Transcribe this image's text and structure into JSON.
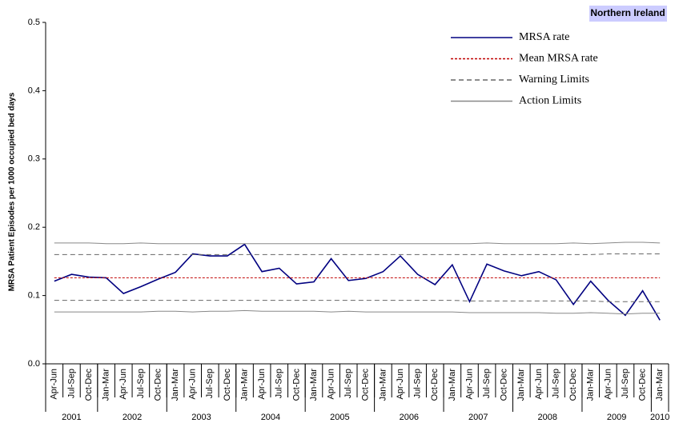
{
  "chart_data": {
    "type": "line",
    "badge": "Northern Ireland",
    "y_label": "MRSA Patient Episodes per 1000 occupied bed days",
    "categories": [
      "Apr-Jun",
      "Jul-Sep",
      "Oct-Dec",
      "Jan-Mar",
      "Apr-Jun",
      "Jul-Sep",
      "Oct-Dec",
      "Jan-Mar",
      "Apr-Jun",
      "Jul-Sep",
      "Oct-Dec",
      "Jan-Mar",
      "Apr-Jun",
      "Jul-Sep",
      "Oct-Dec",
      "Jan-Mar",
      "Apr-Jun",
      "Jul-Sep",
      "Oct-Dec",
      "Jan-Mar",
      "Apr-Jun",
      "Jul-Sep",
      "Oct-Dec",
      "Jan-Mar",
      "Apr-Jun",
      "Jul-Sep",
      "Oct-Dec",
      "Jan-Mar",
      "Apr-Jun",
      "Jul-Sep",
      "Oct-Dec",
      "Jan-Mar",
      "Apr-Jun",
      "Jul-Sep",
      "Oct-Dec",
      "Jan-Mar"
    ],
    "years": [
      "2001",
      null,
      null,
      "2002",
      null,
      null,
      null,
      "2003",
      null,
      null,
      null,
      "2004",
      null,
      null,
      null,
      "2005",
      null,
      null,
      null,
      "2006",
      null,
      null,
      null,
      "2007",
      null,
      null,
      null,
      "2008",
      null,
      null,
      null,
      "2009",
      null,
      null,
      null,
      "2010"
    ],
    "ylim": [
      0,
      0.5
    ],
    "yticks": [
      {
        "value": 0,
        "label": "0.0"
      },
      0.1,
      0.2,
      0.3,
      0.4,
      0.5
    ],
    "series": [
      {
        "name": "MRSA rate",
        "color": "#000080",
        "dash": "none",
        "values": [
          0.121,
          0.131,
          0.127,
          0.126,
          0.103,
          0.113,
          0.124,
          0.134,
          0.161,
          0.158,
          0.158,
          0.175,
          0.135,
          0.14,
          0.117,
          0.12,
          0.154,
          0.122,
          0.125,
          0.135,
          0.158,
          0.131,
          0.116,
          0.145,
          0.091,
          0.146,
          0.136,
          0.129,
          0.135,
          0.123,
          0.087,
          0.121,
          0.093,
          0.071,
          0.107,
          0.064
        ]
      },
      {
        "name": "Mean MRSA rate",
        "color": "#c00000",
        "dash": "3,2",
        "values": [
          0.126,
          0.126,
          0.126,
          0.126,
          0.126,
          0.126,
          0.126,
          0.126,
          0.126,
          0.126,
          0.126,
          0.126,
          0.126,
          0.126,
          0.126,
          0.126,
          0.126,
          0.126,
          0.126,
          0.126,
          0.126,
          0.126,
          0.126,
          0.126,
          0.126,
          0.126,
          0.126,
          0.126,
          0.126,
          0.126,
          0.126,
          0.126,
          0.126,
          0.126,
          0.126,
          0.126
        ]
      },
      {
        "name": "Warning Limits",
        "color": "#666666",
        "dash": "6,4",
        "upper": [
          0.16,
          0.16,
          0.16,
          0.16,
          0.16,
          0.16,
          0.16,
          0.16,
          0.16,
          0.16,
          0.16,
          0.16,
          0.16,
          0.16,
          0.16,
          0.16,
          0.16,
          0.16,
          0.16,
          0.16,
          0.16,
          0.16,
          0.16,
          0.16,
          0.16,
          0.16,
          0.16,
          0.16,
          0.16,
          0.16,
          0.16,
          0.16,
          0.161,
          0.161,
          0.161,
          0.161
        ],
        "lower": [
          0.093,
          0.093,
          0.093,
          0.093,
          0.093,
          0.093,
          0.093,
          0.093,
          0.093,
          0.093,
          0.093,
          0.093,
          0.093,
          0.093,
          0.093,
          0.093,
          0.093,
          0.093,
          0.093,
          0.093,
          0.093,
          0.093,
          0.093,
          0.093,
          0.092,
          0.092,
          0.092,
          0.092,
          0.092,
          0.092,
          0.092,
          0.092,
          0.091,
          0.091,
          0.091,
          0.091
        ]
      },
      {
        "name": "Action Limits",
        "color": "#888888",
        "dash": "none",
        "upper": [
          0.177,
          0.177,
          0.177,
          0.176,
          0.176,
          0.177,
          0.176,
          0.176,
          0.176,
          0.176,
          0.176,
          0.176,
          0.176,
          0.176,
          0.176,
          0.176,
          0.176,
          0.176,
          0.176,
          0.176,
          0.176,
          0.176,
          0.176,
          0.176,
          0.176,
          0.177,
          0.176,
          0.176,
          0.176,
          0.176,
          0.177,
          0.176,
          0.177,
          0.178,
          0.178,
          0.177
        ],
        "lower": [
          0.076,
          0.076,
          0.076,
          0.076,
          0.076,
          0.076,
          0.077,
          0.077,
          0.076,
          0.077,
          0.077,
          0.078,
          0.077,
          0.077,
          0.077,
          0.077,
          0.076,
          0.077,
          0.076,
          0.076,
          0.076,
          0.076,
          0.076,
          0.076,
          0.075,
          0.075,
          0.075,
          0.075,
          0.075,
          0.074,
          0.074,
          0.075,
          0.074,
          0.073,
          0.074,
          0.074
        ]
      }
    ]
  }
}
